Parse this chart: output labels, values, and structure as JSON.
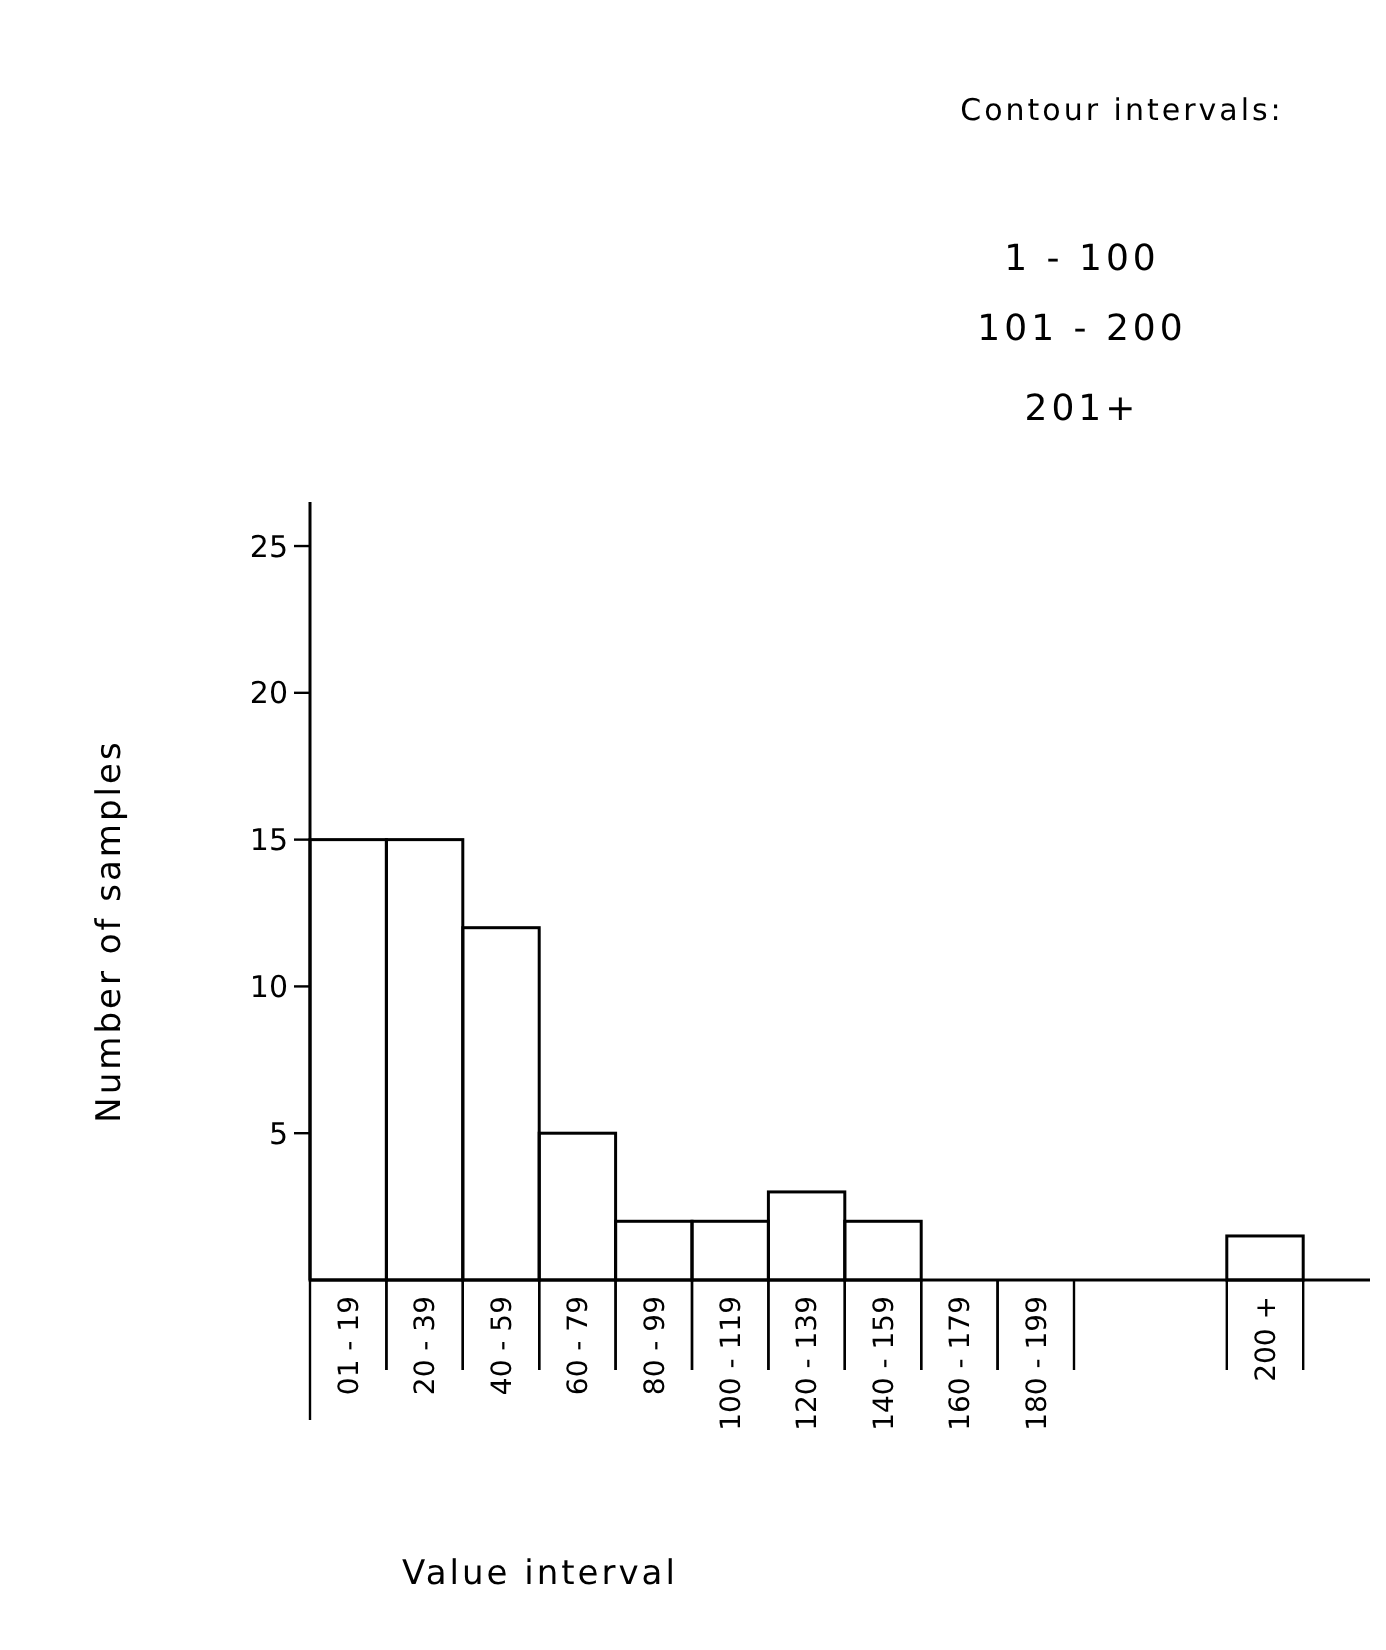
{
  "chart_data": {
    "type": "bar",
    "xlabel": "Value interval",
    "ylabel": "Number of samples",
    "categories": [
      "01 - 19",
      "20 - 39",
      "40 - 59",
      "60 - 79",
      "80 - 99",
      "100 - 119",
      "120 - 139",
      "140 - 159",
      "160 - 179",
      "180 - 199",
      null,
      null,
      "200 +"
    ],
    "values": [
      15,
      15,
      12,
      5,
      2,
      2,
      3,
      2,
      0,
      0,
      null,
      null,
      1.5
    ],
    "color": "#000000",
    "ylim": [
      0,
      26.5
    ],
    "yticks": [
      5,
      10,
      15,
      20,
      25
    ],
    "grid": false,
    "annotations": [
      "Contour intervals:",
      "1 - 100",
      "101 - 200",
      "201+"
    ]
  }
}
